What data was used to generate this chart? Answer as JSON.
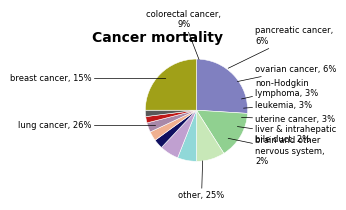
{
  "title": "Cancer mortality",
  "slices": [
    {
      "label": "lung cancer, 26%",
      "value": 26,
      "color": "#8080c0"
    },
    {
      "label": "breast cancer, 15%",
      "value": 15,
      "color": "#90d090"
    },
    {
      "label": "colorectal cancer,\n9%",
      "value": 9,
      "color": "#c8e8b8"
    },
    {
      "label": "pancreatic cancer,\n6%",
      "value": 6,
      "color": "#90d8d8"
    },
    {
      "label": "ovarian cancer, 6%",
      "value": 6,
      "color": "#c0a0d0"
    },
    {
      "label": "non-Hodgkin\nlymphoma, 3%",
      "value": 3,
      "color": "#101060"
    },
    {
      "label": "leukemia, 3%",
      "value": 3,
      "color": "#f0b090"
    },
    {
      "label": "uterine cancer, 3%",
      "value": 3,
      "color": "#a888a8"
    },
    {
      "label": "liver & intrahepatic\nbile duct, 2%",
      "value": 2,
      "color": "#c01818"
    },
    {
      "label": "brain and other\nnervous system,\n2%",
      "value": 2,
      "color": "#585858"
    },
    {
      "label": "other, 25%",
      "value": 25,
      "color": "#a0a018"
    }
  ],
  "background_color": "#ffffff",
  "title_fontsize": 10,
  "label_fontsize": 6.0,
  "startangle": 90
}
